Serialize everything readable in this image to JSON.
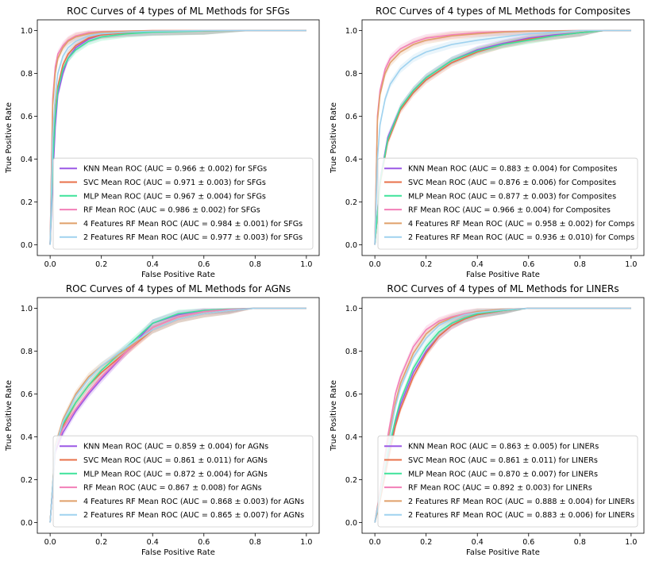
{
  "figure": {
    "rows": 2,
    "cols": 2
  },
  "chart_data": [
    {
      "type": "line",
      "title": "ROC Curves of 4 types of ML Methods for SFGs",
      "xlabel": "False Positive Rate",
      "ylabel": "True Positive Rate",
      "xlim": [
        -0.05,
        1.05
      ],
      "ylim": [
        -0.05,
        1.05
      ],
      "xticks": [
        "0.0",
        "0.2",
        "0.4",
        "0.6",
        "0.8",
        "1.0"
      ],
      "yticks": [
        "0.0",
        "0.2",
        "0.4",
        "0.6",
        "0.8",
        "1.0"
      ],
      "legend_position": "lower-right",
      "series": [
        {
          "name": "KNN Mean ROC (AUC = 0.966 ± 0.002) for SFGs",
          "color": "#9b59e6",
          "x": [
            0,
            0.01,
            0.02,
            0.03,
            0.05,
            0.07,
            0.1,
            0.15,
            0.2,
            0.3,
            0.4,
            0.6,
            0.8,
            1.0
          ],
          "y": [
            0,
            0.3,
            0.55,
            0.7,
            0.8,
            0.87,
            0.92,
            0.96,
            0.98,
            0.99,
            0.995,
            0.999,
            1,
            1
          ]
        },
        {
          "name": "SVC Mean ROC (AUC = 0.971 ± 0.003) for SFGs",
          "color": "#e8704a",
          "x": [
            0,
            0.01,
            0.02,
            0.03,
            0.05,
            0.07,
            0.1,
            0.15,
            0.2,
            0.3,
            0.4,
            0.6,
            0.8,
            1.0
          ],
          "y": [
            0,
            0.4,
            0.63,
            0.74,
            0.84,
            0.89,
            0.93,
            0.965,
            0.98,
            0.99,
            0.995,
            0.999,
            1,
            1
          ]
        },
        {
          "name": "MLP Mean ROC (AUC = 0.967 ± 0.004) for SFGs",
          "color": "#3ee39a",
          "x": [
            0,
            0.01,
            0.02,
            0.03,
            0.05,
            0.07,
            0.1,
            0.15,
            0.2,
            0.3,
            0.4,
            0.6,
            0.8,
            1.0
          ],
          "y": [
            0,
            0.38,
            0.6,
            0.72,
            0.82,
            0.87,
            0.91,
            0.95,
            0.97,
            0.985,
            0.993,
            0.998,
            1,
            1
          ]
        },
        {
          "name": "RF Mean ROC (AUC = 0.986 ± 0.002) for SFGs",
          "color": "#f27fb8",
          "x": [
            0,
            0.01,
            0.02,
            0.03,
            0.05,
            0.07,
            0.1,
            0.15,
            0.2,
            0.3,
            0.4,
            0.6,
            0.8,
            1.0
          ],
          "y": [
            0,
            0.68,
            0.83,
            0.89,
            0.93,
            0.955,
            0.975,
            0.99,
            0.995,
            0.998,
            1,
            1,
            1,
            1
          ]
        },
        {
          "name": "4 Features RF Mean ROC (AUC = 0.984 ± 0.001) for SFGs",
          "color": "#e0a06a",
          "x": [
            0,
            0.01,
            0.02,
            0.03,
            0.05,
            0.07,
            0.1,
            0.15,
            0.2,
            0.3,
            0.4,
            0.6,
            0.8,
            1.0
          ],
          "y": [
            0,
            0.65,
            0.8,
            0.87,
            0.92,
            0.95,
            0.97,
            0.985,
            0.993,
            0.997,
            1,
            1,
            1,
            1
          ]
        },
        {
          "name": "2 Features RF Mean ROC (AUC = 0.977 ± 0.003) for SFGs",
          "color": "#9fd2ef",
          "x": [
            0,
            0.01,
            0.02,
            0.03,
            0.05,
            0.07,
            0.1,
            0.15,
            0.2,
            0.3,
            0.4,
            0.6,
            0.8,
            1.0
          ],
          "y": [
            0,
            0.5,
            0.7,
            0.8,
            0.88,
            0.92,
            0.95,
            0.975,
            0.985,
            0.993,
            0.997,
            1,
            1,
            1
          ]
        }
      ]
    },
    {
      "type": "line",
      "title": "ROC Curves of 4 types of ML Methods for Composites",
      "xlabel": "False Positive Rate",
      "ylabel": "True Positive Rate",
      "xlim": [
        -0.05,
        1.05
      ],
      "ylim": [
        -0.05,
        1.05
      ],
      "xticks": [
        "0.0",
        "0.2",
        "0.4",
        "0.6",
        "0.8",
        "1.0"
      ],
      "yticks": [
        "0.0",
        "0.2",
        "0.4",
        "0.6",
        "0.8",
        "1.0"
      ],
      "legend_position": "lower-right",
      "series": [
        {
          "name": "KNN Mean ROC (AUC = 0.883 ± 0.004) for Composites",
          "color": "#9b59e6",
          "x": [
            0,
            0.02,
            0.05,
            0.1,
            0.15,
            0.2,
            0.3,
            0.4,
            0.5,
            0.6,
            0.7,
            0.8,
            0.9,
            1.0
          ],
          "y": [
            0,
            0.3,
            0.5,
            0.64,
            0.72,
            0.78,
            0.86,
            0.91,
            0.94,
            0.965,
            0.98,
            0.99,
            1,
            1
          ]
        },
        {
          "name": "SVC Mean ROC (AUC = 0.876 ± 0.006) for Composites",
          "color": "#e8704a",
          "x": [
            0,
            0.02,
            0.05,
            0.1,
            0.15,
            0.2,
            0.3,
            0.4,
            0.5,
            0.6,
            0.7,
            0.8,
            0.9,
            1.0
          ],
          "y": [
            0,
            0.28,
            0.48,
            0.63,
            0.71,
            0.77,
            0.85,
            0.9,
            0.935,
            0.96,
            0.975,
            0.99,
            1,
            1
          ]
        },
        {
          "name": "MLP Mean ROC (AUC = 0.877 ± 0.003) for Composites",
          "color": "#3ee39a",
          "x": [
            0,
            0.02,
            0.05,
            0.1,
            0.15,
            0.2,
            0.3,
            0.4,
            0.5,
            0.6,
            0.7,
            0.8,
            0.9,
            1.0
          ],
          "y": [
            0,
            0.29,
            0.49,
            0.64,
            0.72,
            0.78,
            0.86,
            0.905,
            0.935,
            0.955,
            0.975,
            0.99,
            1,
            1
          ]
        },
        {
          "name": "RF Mean ROC (AUC = 0.966 ± 0.004) for Composites",
          "color": "#f27fb8",
          "x": [
            0,
            0.01,
            0.02,
            0.04,
            0.06,
            0.1,
            0.15,
            0.2,
            0.3,
            0.4,
            0.5,
            0.6,
            0.8,
            1.0
          ],
          "y": [
            0,
            0.6,
            0.72,
            0.82,
            0.87,
            0.915,
            0.945,
            0.965,
            0.98,
            0.99,
            0.995,
            0.998,
            1,
            1
          ]
        },
        {
          "name": "4 Features RF Mean ROC (AUC = 0.958 ± 0.002) for Comps",
          "color": "#e0a06a",
          "x": [
            0,
            0.01,
            0.02,
            0.04,
            0.06,
            0.1,
            0.15,
            0.2,
            0.3,
            0.4,
            0.5,
            0.6,
            0.8,
            1.0
          ],
          "y": [
            0,
            0.58,
            0.7,
            0.8,
            0.85,
            0.9,
            0.935,
            0.955,
            0.975,
            0.985,
            0.993,
            0.997,
            1,
            1
          ]
        },
        {
          "name": "2 Features RF Mean ROC (AUC = 0.936 ± 0.010) for Comps",
          "color": "#9fd2ef",
          "x": [
            0,
            0.01,
            0.02,
            0.04,
            0.06,
            0.1,
            0.15,
            0.2,
            0.3,
            0.4,
            0.5,
            0.6,
            0.8,
            1.0
          ],
          "y": [
            0,
            0.4,
            0.56,
            0.68,
            0.75,
            0.82,
            0.87,
            0.9,
            0.935,
            0.955,
            0.97,
            0.985,
            1,
            1
          ]
        }
      ]
    },
    {
      "type": "line",
      "title": "ROC Curves of 4 types of ML Methods for AGNs",
      "xlabel": "False Positive Rate",
      "ylabel": "True Positive Rate",
      "xlim": [
        -0.05,
        1.05
      ],
      "ylim": [
        -0.05,
        1.05
      ],
      "xticks": [
        "0.0",
        "0.2",
        "0.4",
        "0.6",
        "0.8",
        "1.0"
      ],
      "yticks": [
        "0.0",
        "0.2",
        "0.4",
        "0.6",
        "0.8",
        "1.0"
      ],
      "legend_position": "lower-right",
      "series": [
        {
          "name": "KNN Mean ROC (AUC = 0.859 ± 0.004) for AGNs",
          "color": "#9b59e6",
          "x": [
            0,
            0.02,
            0.05,
            0.1,
            0.15,
            0.2,
            0.3,
            0.4,
            0.5,
            0.6,
            0.7,
            0.8,
            1.0
          ],
          "y": [
            0,
            0.33,
            0.42,
            0.52,
            0.6,
            0.67,
            0.8,
            0.93,
            0.97,
            0.99,
            0.995,
            1,
            1
          ]
        },
        {
          "name": "SVC Mean ROC (AUC = 0.861 ± 0.011) for AGNs",
          "color": "#e8704a",
          "x": [
            0,
            0.02,
            0.05,
            0.1,
            0.15,
            0.2,
            0.3,
            0.4,
            0.5,
            0.6,
            0.7,
            0.8,
            1.0
          ],
          "y": [
            0,
            0.34,
            0.45,
            0.56,
            0.64,
            0.7,
            0.8,
            0.9,
            0.95,
            0.975,
            0.99,
            1,
            1
          ]
        },
        {
          "name": "MLP Mean ROC (AUC = 0.872 ± 0.004) for AGNs",
          "color": "#3ee39a",
          "x": [
            0,
            0.02,
            0.05,
            0.1,
            0.15,
            0.2,
            0.3,
            0.4,
            0.5,
            0.6,
            0.7,
            0.8,
            1.0
          ],
          "y": [
            0,
            0.35,
            0.46,
            0.56,
            0.64,
            0.71,
            0.82,
            0.93,
            0.975,
            0.99,
            0.997,
            1,
            1
          ]
        },
        {
          "name": "RF Mean ROC (AUC = 0.867 ± 0.008) for AGNs",
          "color": "#f27fb8",
          "x": [
            0,
            0.02,
            0.05,
            0.1,
            0.15,
            0.2,
            0.3,
            0.4,
            0.5,
            0.6,
            0.7,
            0.8,
            1.0
          ],
          "y": [
            0,
            0.34,
            0.44,
            0.53,
            0.61,
            0.68,
            0.8,
            0.91,
            0.96,
            0.985,
            0.995,
            1,
            1
          ]
        },
        {
          "name": "4 Features RF Mean ROC (AUC = 0.868 ± 0.003) for AGNs",
          "color": "#e0a06a",
          "x": [
            0,
            0.02,
            0.05,
            0.1,
            0.15,
            0.2,
            0.3,
            0.4,
            0.5,
            0.6,
            0.7,
            0.8,
            1.0
          ],
          "y": [
            0,
            0.36,
            0.48,
            0.6,
            0.68,
            0.73,
            0.81,
            0.9,
            0.95,
            0.975,
            0.99,
            1,
            1
          ]
        },
        {
          "name": "2 Features RF Mean ROC (AUC = 0.865 ± 0.007) for AGNs",
          "color": "#9fd2ef",
          "x": [
            0,
            0.02,
            0.05,
            0.1,
            0.15,
            0.2,
            0.3,
            0.4,
            0.5,
            0.6,
            0.7,
            0.8,
            1.0
          ],
          "y": [
            0,
            0.35,
            0.47,
            0.59,
            0.67,
            0.73,
            0.82,
            0.9,
            0.95,
            0.975,
            0.99,
            1,
            1
          ]
        }
      ]
    },
    {
      "type": "line",
      "title": "ROC Curves of 4 types of ML Methods for LINERs",
      "xlabel": "False Positive Rate",
      "ylabel": "True Positive Rate",
      "xlim": [
        -0.05,
        1.05
      ],
      "ylim": [
        -0.05,
        1.05
      ],
      "xticks": [
        "0.0",
        "0.2",
        "0.4",
        "0.6",
        "0.8",
        "1.0"
      ],
      "yticks": [
        "0.0",
        "0.2",
        "0.4",
        "0.6",
        "0.8",
        "1.0"
      ],
      "legend_position": "lower-right",
      "series": [
        {
          "name": "KNN Mean ROC (AUC = 0.863 ± 0.005) for LINERs",
          "color": "#9b59e6",
          "x": [
            0,
            0.02,
            0.05,
            0.08,
            0.1,
            0.15,
            0.2,
            0.25,
            0.3,
            0.35,
            0.4,
            0.5,
            0.6,
            0.8,
            1.0
          ],
          "y": [
            0,
            0.12,
            0.3,
            0.47,
            0.55,
            0.7,
            0.8,
            0.87,
            0.92,
            0.95,
            0.97,
            0.99,
            1,
            1,
            1
          ]
        },
        {
          "name": "SVC Mean ROC (AUC = 0.861 ± 0.011) for LINERs",
          "color": "#e8704a",
          "x": [
            0,
            0.02,
            0.05,
            0.08,
            0.1,
            0.15,
            0.2,
            0.25,
            0.3,
            0.35,
            0.4,
            0.5,
            0.6,
            0.8,
            1.0
          ],
          "y": [
            0,
            0.1,
            0.28,
            0.45,
            0.53,
            0.68,
            0.79,
            0.87,
            0.92,
            0.95,
            0.97,
            0.99,
            1,
            1,
            1
          ]
        },
        {
          "name": "MLP Mean ROC (AUC = 0.870 ± 0.007) for LINERs",
          "color": "#3ee39a",
          "x": [
            0,
            0.02,
            0.05,
            0.08,
            0.1,
            0.15,
            0.2,
            0.25,
            0.3,
            0.35,
            0.4,
            0.5,
            0.6,
            0.8,
            1.0
          ],
          "y": [
            0,
            0.12,
            0.32,
            0.48,
            0.57,
            0.72,
            0.82,
            0.89,
            0.93,
            0.955,
            0.975,
            0.99,
            1,
            1,
            1
          ]
        },
        {
          "name": "RF Mean ROC (AUC = 0.892 ± 0.003) for LINERs",
          "color": "#f27fb8",
          "x": [
            0,
            0.02,
            0.05,
            0.08,
            0.1,
            0.15,
            0.2,
            0.25,
            0.3,
            0.35,
            0.4,
            0.5,
            0.6,
            0.8,
            1.0
          ],
          "y": [
            0,
            0.15,
            0.4,
            0.6,
            0.68,
            0.82,
            0.9,
            0.94,
            0.96,
            0.975,
            0.985,
            0.995,
            1,
            1,
            1
          ]
        },
        {
          "name": "2 Features RF Mean ROC (AUC = 0.888 ± 0.004) for LINERs",
          "color": "#e0a06a",
          "x": [
            0,
            0.02,
            0.05,
            0.08,
            0.1,
            0.15,
            0.2,
            0.25,
            0.3,
            0.35,
            0.4,
            0.5,
            0.6,
            0.8,
            1.0
          ],
          "y": [
            0,
            0.14,
            0.37,
            0.56,
            0.65,
            0.79,
            0.88,
            0.93,
            0.955,
            0.97,
            0.985,
            0.995,
            1,
            1,
            1
          ]
        },
        {
          "name": "2 Features RF Mean ROC (AUC = 0.883 ± 0.006) for LINERs",
          "color": "#9fd2ef",
          "x": [
            0,
            0.02,
            0.05,
            0.08,
            0.1,
            0.15,
            0.2,
            0.25,
            0.3,
            0.35,
            0.4,
            0.5,
            0.6,
            0.8,
            1.0
          ],
          "y": [
            0,
            0.13,
            0.35,
            0.54,
            0.63,
            0.77,
            0.86,
            0.92,
            0.95,
            0.97,
            0.98,
            0.993,
            1,
            1,
            1
          ]
        }
      ]
    }
  ]
}
